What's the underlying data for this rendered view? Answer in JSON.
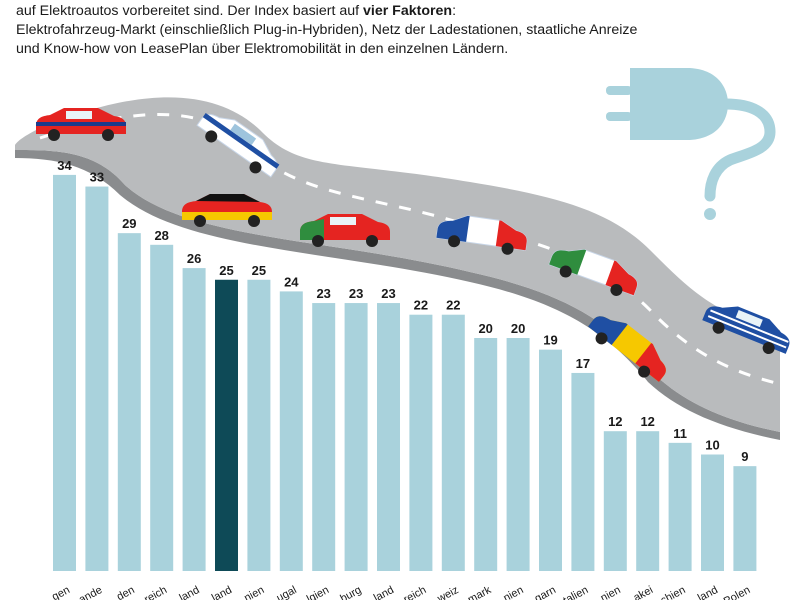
{
  "intro": {
    "line1_prefix": "auf  Elektroautos vorbereitet sind. Der Index basiert auf ",
    "line1_bold": "vier Faktoren",
    "line1_suffix": ":",
    "line2": "Elektrofahrzeug-Markt (einschließlich Plug-in-Hybriden), Netz der Ladestationen, staatliche Anreize",
    "line3": "und Know-how von LeasePlan über Elektromobilität in den einzelnen Ländern."
  },
  "chart_data": {
    "type": "bar",
    "categories": [
      "…gen",
      "…ande",
      "…den",
      "…reich",
      "…land",
      "…land",
      "…nien",
      "…ugal",
      "…lgien",
      "…burg",
      "…land",
      "…reich",
      "…weiz",
      "…mark",
      "…nien",
      "…garn",
      "…talien",
      "…nien",
      "…akei",
      "…chien",
      "…land",
      "Polen"
    ],
    "values": [
      34,
      33,
      29,
      28,
      26,
      25,
      25,
      24,
      23,
      23,
      23,
      22,
      22,
      20,
      20,
      19,
      17,
      12,
      12,
      11,
      10,
      9
    ],
    "highlight_index": 5,
    "colors": {
      "bar": "#a9d2dc",
      "highlight": "#0e4a57",
      "road": "#b9bbbd",
      "road_edge": "#7a7c7e",
      "plug": "#a9d2dc"
    }
  }
}
